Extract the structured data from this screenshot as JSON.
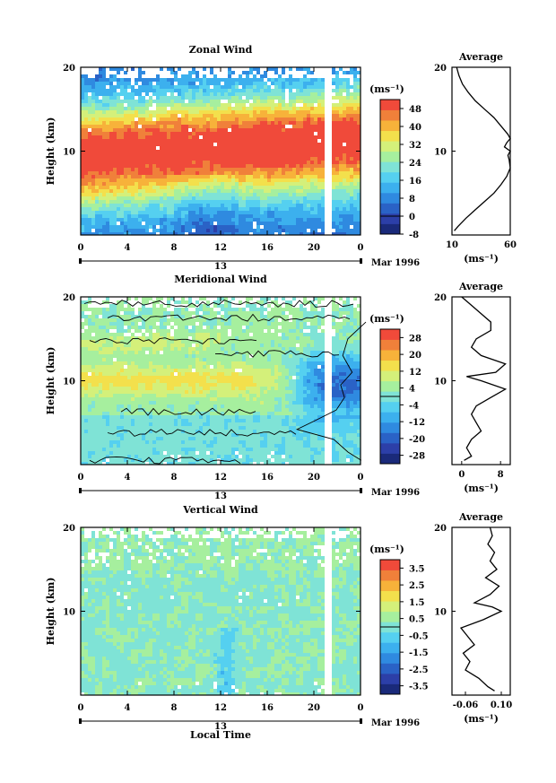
{
  "chart_data": [
    {
      "type": "heatmap",
      "title": "Zonal Wind",
      "ylabel": "Height (km)",
      "ylim": [
        0,
        20
      ],
      "y_ticks": [
        "10",
        "20"
      ],
      "x_ticks": [
        "0",
        "4",
        "8",
        "12",
        "16",
        "20",
        "0"
      ],
      "xlim_hours": [
        0,
        24
      ],
      "date_label": "13",
      "month_label": "Mar 1996",
      "colorbar": {
        "unit": "(ms⁻¹)",
        "ticks": [
          "48",
          "40",
          "32",
          "24",
          "16",
          "8",
          "0",
          "-8"
        ],
        "range": [
          -8,
          52
        ],
        "colors": [
          "#1a2a7a",
          "#2c3fa8",
          "#2a62c6",
          "#2f8ae0",
          "#3cb0ee",
          "#55d0f0",
          "#7fe3d6",
          "#a6ef9e",
          "#d4f07a",
          "#f3e04c",
          "#f7b23a",
          "#f0803a",
          "#f04a3a"
        ]
      },
      "average_profile": {
        "title": "Average",
        "xlim": [
          10,
          60
        ],
        "x_ticks": [
          "10",
          "60"
        ],
        "xlabel": "(ms⁻¹)",
        "heights": [
          0.5,
          1,
          2,
          3,
          4,
          5,
          6,
          7,
          8,
          9,
          9.5,
          10,
          10.5,
          11,
          11.5,
          12,
          13,
          14,
          15,
          16,
          17,
          18,
          19,
          20
        ],
        "values": [
          12,
          15,
          22,
          30,
          38,
          46,
          52,
          57,
          60,
          59,
          58,
          60,
          55,
          57,
          60,
          58,
          52,
          46,
          38,
          30,
          24,
          19,
          16,
          14
        ]
      },
      "field": {
        "jet_peak_ms": 50,
        "jet_core_height_start_km": 9.5,
        "jet_core_height_end_km": 11.5,
        "data_gap_hour": 21.3
      }
    },
    {
      "type": "heatmap",
      "title": "Meridional Wind",
      "ylabel": "Height (km)",
      "ylim": [
        0,
        20
      ],
      "y_ticks": [
        "10",
        "20"
      ],
      "x_ticks": [
        "0",
        "4",
        "8",
        "12",
        "16",
        "20",
        "0"
      ],
      "xlim_hours": [
        0,
        24
      ],
      "date_label": "13",
      "month_label": "Mar 1996",
      "colorbar": {
        "unit": "(ms⁻¹)",
        "ticks": [
          "28",
          "20",
          "12",
          "4",
          "-4",
          "-12",
          "-20",
          "-28"
        ],
        "range": [
          -32,
          32
        ],
        "colors": [
          "#1a2a7a",
          "#2c3fa8",
          "#2a62c6",
          "#2f8ae0",
          "#3cb0ee",
          "#55d0f0",
          "#7fe3d6",
          "#a6ef9e",
          "#d4f07a",
          "#f3e04c",
          "#f7b23a",
          "#f0803a",
          "#f04a3a"
        ]
      },
      "average_profile": {
        "title": "Average",
        "xlim": [
          -2,
          10
        ],
        "x_ticks": [
          "0",
          "8"
        ],
        "xlabel": "(ms⁻¹)",
        "heights": [
          0.5,
          1,
          2,
          3,
          4,
          5,
          6,
          7,
          8,
          9,
          10,
          10.5,
          11,
          12,
          13,
          14,
          15,
          16,
          17,
          18,
          19,
          20
        ],
        "values": [
          0.5,
          2,
          1,
          2,
          4,
          3,
          2,
          3,
          6,
          9,
          4,
          1,
          7,
          9,
          4,
          2,
          3,
          6,
          6,
          4,
          2,
          0
        ]
      },
      "field": {
        "positive_band_height_km": 10,
        "positive_band_peak_ms": 14,
        "negative_region_start_hour": 19,
        "negative_peak_ms": -18,
        "data_gap_hour": 21.3
      }
    },
    {
      "type": "heatmap",
      "title": "Vertical Wind",
      "ylabel": "Height (km)",
      "xlabel": "Local Time",
      "ylim": [
        0,
        20
      ],
      "y_ticks": [
        "10",
        "20"
      ],
      "x_ticks": [
        "0",
        "4",
        "8",
        "12",
        "16",
        "20",
        "0"
      ],
      "xlim_hours": [
        0,
        24
      ],
      "date_label": "13",
      "month_label": "Mar 1996",
      "colorbar": {
        "unit": "(ms⁻¹)",
        "ticks": [
          "3.5",
          "2.5",
          "1.5",
          "0.5",
          "-0.5",
          "-1.5",
          "-2.5",
          "-3.5"
        ],
        "range": [
          -4,
          4
        ],
        "colors": [
          "#1a2a7a",
          "#2c3fa8",
          "#2a62c6",
          "#2f8ae0",
          "#3cb0ee",
          "#55d0f0",
          "#7fe3d6",
          "#a6ef9e",
          "#d4f07a",
          "#f3e04c",
          "#f7b23a",
          "#f0803a",
          "#f04a3a"
        ]
      },
      "average_profile": {
        "title": "Average",
        "xlim": [
          -0.12,
          0.14
        ],
        "x_ticks": [
          "-0.06",
          "0.10"
        ],
        "xlabel": "(ms⁻¹)",
        "heights": [
          0.5,
          1,
          2,
          3,
          4,
          5,
          6,
          7,
          8,
          9,
          10,
          10.5,
          11,
          12,
          13,
          14,
          15,
          16,
          17,
          18,
          19,
          20
        ],
        "values": [
          0.07,
          0.04,
          0.0,
          -0.06,
          -0.04,
          -0.07,
          -0.02,
          -0.05,
          -0.08,
          0.02,
          0.1,
          0.06,
          -0.02,
          0.05,
          0.09,
          0.03,
          0.08,
          0.05,
          0.07,
          0.04,
          0.06,
          0.05
        ]
      },
      "field": {
        "typical_ms": 0.2,
        "data_gap_hour": 21.3
      }
    }
  ]
}
